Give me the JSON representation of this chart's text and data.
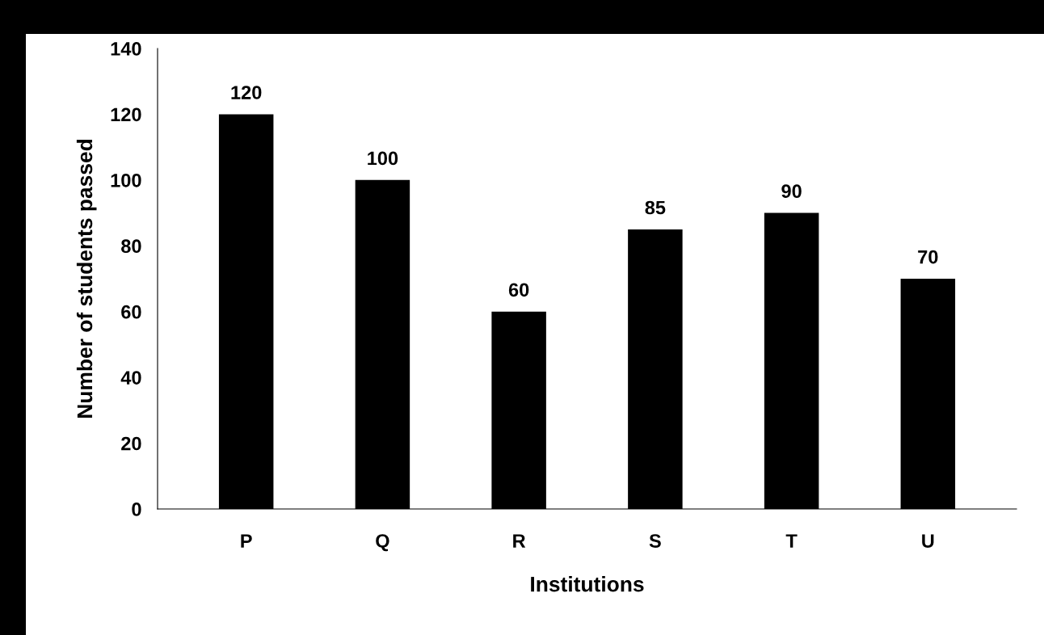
{
  "chart_data": {
    "type": "bar",
    "xlabel": "Institutions",
    "ylabel": "Number of students passed",
    "categories": [
      "P",
      "Q",
      "R",
      "S",
      "T",
      "U"
    ],
    "values": [
      120,
      100,
      60,
      85,
      90,
      70
    ],
    "color": "#000000",
    "ylim": [
      0,
      140
    ],
    "yticks": [
      0,
      20,
      40,
      60,
      80,
      100,
      120,
      140
    ],
    "data_labels": true,
    "grid": false,
    "legend": false
  }
}
